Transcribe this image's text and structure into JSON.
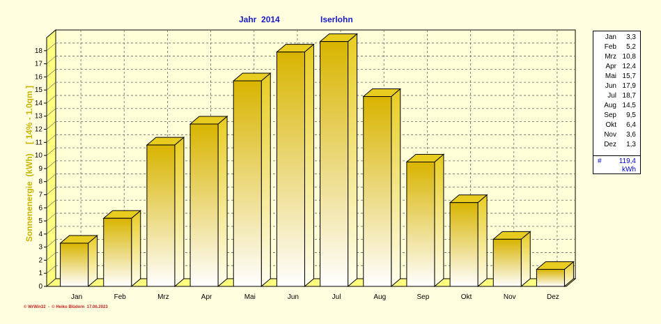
{
  "header": {
    "year_label": "Jahr  2014",
    "location": "Iserlohn"
  },
  "chart_data": {
    "type": "bar",
    "categories": [
      "Jan",
      "Feb",
      "Mrz",
      "Apr",
      "Mai",
      "Jun",
      "Jul",
      "Aug",
      "Sep",
      "Okt",
      "Nov",
      "Dez"
    ],
    "values": [
      3.3,
      5.2,
      10.8,
      12.4,
      15.7,
      17.9,
      18.7,
      14.5,
      9.5,
      6.4,
      3.6,
      1.3
    ],
    "ylabel": "Sonnenenergie  (kWh)    [ 14% - 1.0qm ]",
    "ylim": [
      0,
      19
    ],
    "yticks": [
      0,
      1,
      2,
      3,
      4,
      5,
      6,
      7,
      8,
      9,
      10,
      11,
      12,
      13,
      14,
      15,
      16,
      17,
      18
    ],
    "grid": true,
    "legend_position": "right",
    "colors": {
      "bar_top": "#d8b400",
      "bar_bottom": "#ffffff",
      "background": "#ffffe0",
      "plot_bg": "#ffffd8"
    }
  },
  "legend": {
    "rows": [
      {
        "month": "Jan",
        "value": "3,3"
      },
      {
        "month": "Feb",
        "value": "5,2"
      },
      {
        "month": "Mrz",
        "value": "10,8"
      },
      {
        "month": "Apr",
        "value": "12,4"
      },
      {
        "month": "Mai",
        "value": "15,7"
      },
      {
        "month": "Jun",
        "value": "17,9"
      },
      {
        "month": "Jul",
        "value": "18,7"
      },
      {
        "month": "Aug",
        "value": "14,5"
      },
      {
        "month": "Sep",
        "value": "9,5"
      },
      {
        "month": "Okt",
        "value": "6,4"
      },
      {
        "month": "Nov",
        "value": "3,6"
      },
      {
        "month": "Dez",
        "value": "1,3"
      }
    ],
    "total_symbol": "#",
    "total": "119,4",
    "unit": "kWh"
  },
  "footer": "© WrWin32  -  © Heiko Blüdorn  17.06.2023"
}
